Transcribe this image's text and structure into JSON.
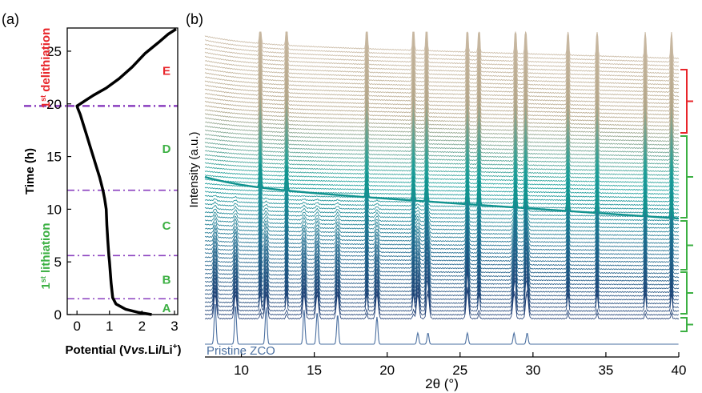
{
  "chart_data": [
    {
      "panel_label": "(a)",
      "type": "line",
      "xlabel": "Potential (V vs. Li/Li+)",
      "xlabel_parts": {
        "a": "Potential (V",
        "b": "vs.",
        "c": "Li/Li",
        "sup": "+",
        "d": ")"
      },
      "ylabel": "Time (h)",
      "xlim": [
        -0.3,
        3.1
      ],
      "ylim": [
        0,
        27.2
      ],
      "xticks": [
        0,
        1,
        2,
        3
      ],
      "yticks": [
        0,
        5,
        10,
        15,
        20,
        25
      ],
      "grid": false,
      "series": [
        {
          "x": [
            2.3,
            1.9,
            1.5,
            1.2,
            1.1,
            1.05,
            1.0,
            0.98,
            0.95,
            0.92,
            0.9,
            0.85,
            0.8,
            0.7,
            0.6,
            0.5,
            0.4,
            0.3,
            0.2,
            0.1,
            0.02,
            0.0,
            0.05,
            0.2,
            0.5,
            0.9,
            1.3,
            1.7,
            2.1,
            2.5,
            2.8,
            3.05
          ],
          "y": [
            0.0,
            0.2,
            0.5,
            1.0,
            1.6,
            3.0,
            5.0,
            5.6,
            7.0,
            8.5,
            10.0,
            11.0,
            11.8,
            13.0,
            14.0,
            15.0,
            16.0,
            17.0,
            18.0,
            19.0,
            19.6,
            19.8,
            19.9,
            20.2,
            20.8,
            21.5,
            22.4,
            23.5,
            24.8,
            25.8,
            26.6,
            27.1
          ]
        }
      ],
      "dividers_y": [
        1.5,
        5.6,
        11.8,
        19.8
      ],
      "regions": [
        {
          "label": "A",
          "y": 0.7,
          "color": "#3cb043"
        },
        {
          "label": "B",
          "y": 3.4,
          "color": "#3cb043"
        },
        {
          "label": "C",
          "y": 8.5,
          "color": "#3cb043"
        },
        {
          "label": "D",
          "y": 15.8,
          "color": "#3cb043"
        },
        {
          "label": "E",
          "y": 23.2,
          "color": "#e8262b"
        }
      ],
      "annotations": {
        "lithiation": {
          "num": "1",
          "sup": "st",
          "text": " lithiation",
          "color": "#3cb043"
        },
        "delithiation": {
          "num": "1",
          "sup": "st",
          "text": " delithiation",
          "color": "#e8262b"
        }
      },
      "divider_color": "#8a3fbf"
    },
    {
      "panel_label": "(b)",
      "type": "line",
      "xlabel": "2θ (°)",
      "ylabel": "Intensity (a.u.)",
      "xlim": [
        7.5,
        40
      ],
      "xticks": [
        10,
        15,
        20,
        25,
        30,
        35,
        40
      ],
      "pristine_label": "Pristine ZCO",
      "pristine_color": "#4a6fa0",
      "pristine_peaks": [
        8.2,
        9.6,
        11.7,
        14.3,
        15.2,
        16.6,
        19.3,
        22.1,
        22.8,
        25.5,
        28.7,
        29.6
      ],
      "electrolyte_peaks": [
        11.3,
        13.1,
        18.6,
        21.8,
        22.7,
        25.5,
        26.3,
        28.8,
        29.5,
        32.4,
        34.4,
        37.7,
        39.5
      ],
      "highlight_trace_color": "#12938f",
      "color_gradient": [
        "#1f3d73",
        "#1f6b8f",
        "#1aa09a",
        "#b5a78a",
        "#c9b9a3"
      ],
      "bracket_colors": {
        "green": "#3cb043",
        "red": "#e8262b"
      }
    }
  ]
}
